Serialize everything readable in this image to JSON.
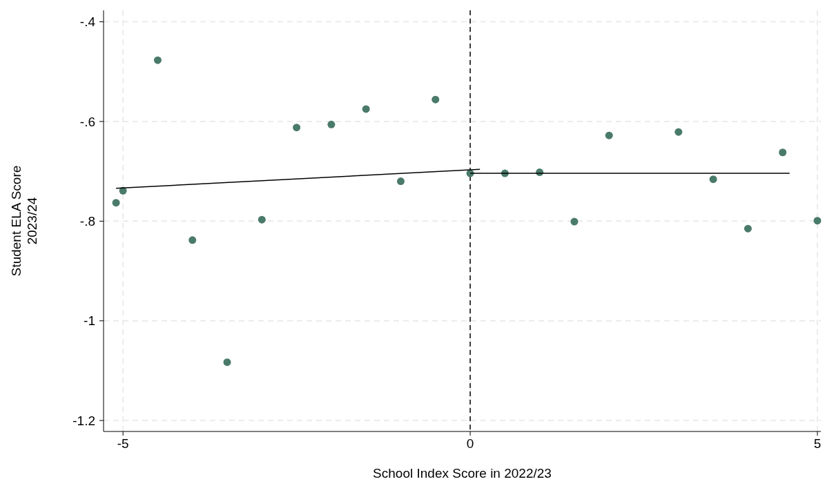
{
  "chart_data": {
    "type": "scatter",
    "xlabel": "School Index Score in 2022/23",
    "ylabel": "Student ELA Score\n2023/24",
    "xlim": [
      -5.28,
      5.05
    ],
    "ylim": [
      -1.222,
      -0.377
    ],
    "xticks": [
      -5,
      0,
      5
    ],
    "yticks": [
      {
        "value": -0.4,
        "label": "-.4"
      },
      {
        "value": -0.6,
        "label": "-.6"
      },
      {
        "value": -0.8,
        "label": "-.8"
      },
      {
        "value": -1,
        "label": "-1"
      },
      {
        "value": -1.2,
        "label": "-1.2"
      }
    ],
    "grid": true,
    "ref_lines": [
      {
        "axis": "x",
        "value": 0,
        "color": "#000000",
        "line_style": "dashed"
      }
    ],
    "series": [
      {
        "marker": "circle",
        "color": "#4a7a6a",
        "x": [
          -5.1,
          -5.0,
          -4.5,
          -4.0,
          -3.5,
          -3.0,
          -2.5,
          -2.0,
          -1.5,
          -1.0,
          -0.5,
          0,
          0.5,
          1.0,
          1.5,
          2.0,
          3.0,
          3.5,
          4.0,
          4.5,
          5.0
        ],
        "values": [
          -0.763,
          -0.739,
          -0.477,
          -0.838,
          -1.083,
          -0.797,
          -0.612,
          -0.606,
          -0.575,
          -0.72,
          -0.556,
          -0.704,
          -0.704,
          -0.702,
          -0.801,
          -0.628,
          -0.621,
          -0.716,
          -0.815,
          -0.662,
          -0.799
        ]
      },
      {
        "type": "line",
        "marker": "none",
        "color": "#000000",
        "x": [
          -5.1,
          0.14
        ],
        "values": [
          -0.734,
          -0.696
        ]
      },
      {
        "type": "line",
        "marker": "none",
        "color": "#000000",
        "x": [
          0,
          4.6
        ],
        "values": [
          -0.704,
          -0.704
        ]
      }
    ]
  }
}
